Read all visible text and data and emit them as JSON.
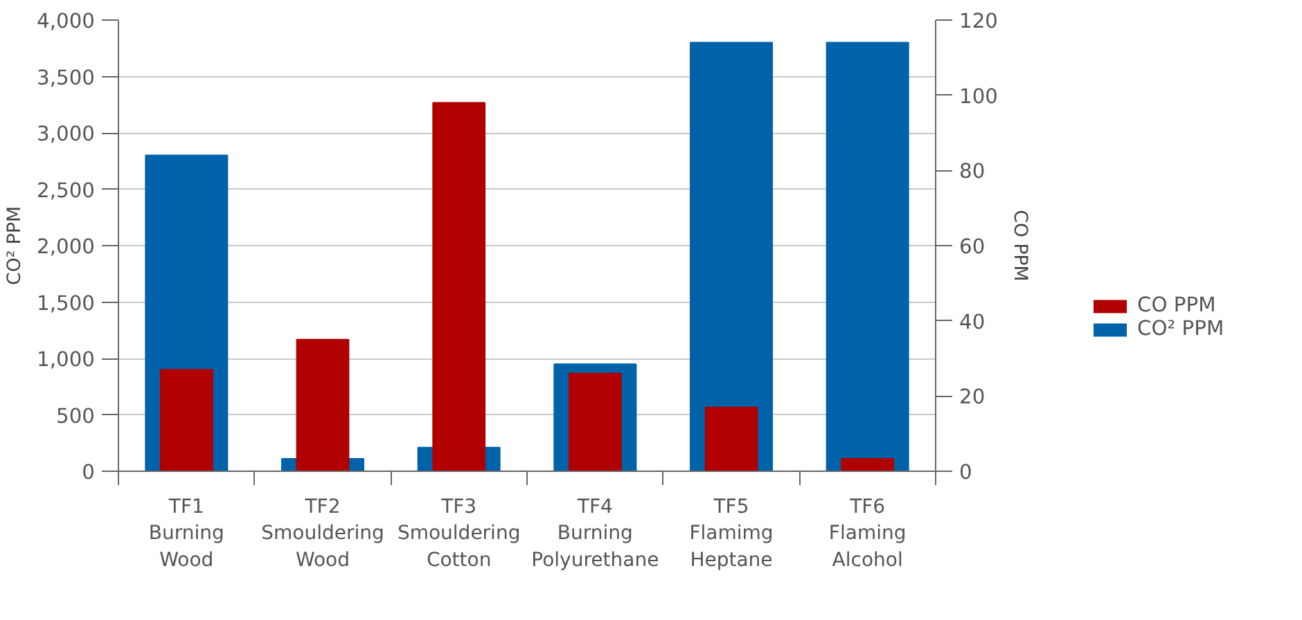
{
  "chart_data": {
    "type": "bar",
    "categories": [
      "TF1\nBurning\nWood",
      "TF2\nSmouldering\nWood",
      "TF3\nSmouldering\nCotton",
      "TF4\nBurning\nPolyurethane",
      "TF5\nFlamimg\nHeptane",
      "TF6\nFlaming\nAlcohol"
    ],
    "series": [
      {
        "name": "CO PPM",
        "color": "#b00000",
        "axis": "y2",
        "values": [
          27,
          35,
          98,
          26,
          17,
          3.3
        ]
      },
      {
        "name": "CO² PPM",
        "color": "#0062a8",
        "values": [
          2800,
          110,
          210,
          950,
          3800,
          3800
        ]
      }
    ],
    "ylabel": "CO² PPM",
    "y2label": "CO PPM",
    "ylim": [
      0,
      4000
    ],
    "yticks": [
      {
        "value": 0,
        "label": "0"
      },
      {
        "value": 500,
        "label": "500"
      },
      {
        "value": 1000,
        "label": "1,000"
      },
      {
        "value": 1500,
        "label": "1,500"
      },
      {
        "value": 2000,
        "label": "2,000"
      },
      {
        "value": 2500,
        "label": "2,500"
      },
      {
        "value": 3000,
        "label": "3,000"
      },
      {
        "value": 3500,
        "label": "3,500"
      },
      {
        "value": 4000,
        "label": "4,000"
      }
    ],
    "y2lim": [
      0,
      120
    ],
    "y2ticks": [
      0,
      20,
      40,
      60,
      80,
      100,
      120
    ],
    "grid": "y",
    "legend": "right"
  }
}
